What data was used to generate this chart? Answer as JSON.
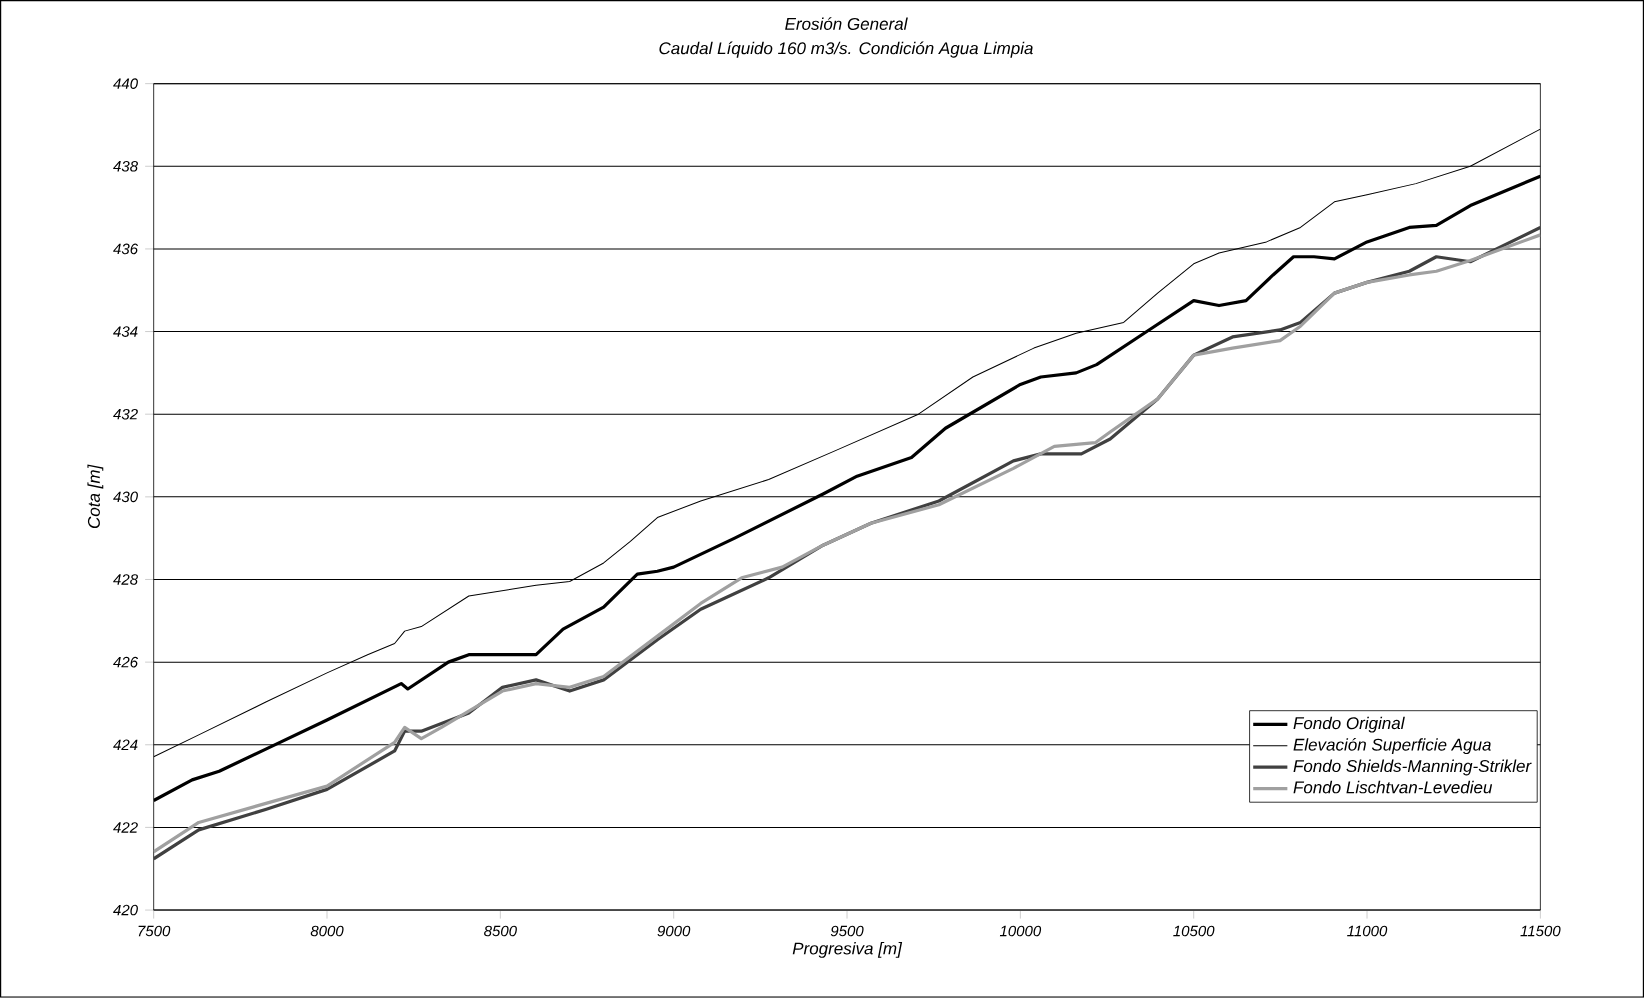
{
  "chart_data": {
    "type": "line",
    "title": "Erosión General",
    "subtitle": "Caudal Líquido 160 m3/s. Condición Agua Limpia",
    "xlabel": "Progresiva [m]",
    "ylabel": "Cota [m]",
    "xlim": [
      7500,
      11500
    ],
    "ylim": [
      420,
      440
    ],
    "xticks": [
      7500,
      8000,
      8500,
      9000,
      9500,
      10000,
      10500,
      11000,
      11500
    ],
    "yticks": [
      420,
      422,
      424,
      426,
      428,
      430,
      432,
      434,
      436,
      438,
      440
    ],
    "grid": "y",
    "legend": "bottom right",
    "marker": "none",
    "line_style": "solid",
    "series": [
      {
        "name": "Fondo Original",
        "color": "#000000",
        "x": [
          7500,
          7611,
          7689,
          7825,
          8000,
          8214,
          8233,
          8350,
          8409,
          8486,
          8603,
          8681,
          8798,
          8895,
          8953,
          9000,
          9176,
          9431,
          9529,
          9686,
          9784,
          10000,
          10059,
          10161,
          10220,
          10357,
          10500,
          10573,
          10651,
          10729,
          10788,
          10847,
          10906,
          11000,
          11122,
          11200,
          11298,
          11500
        ],
        "values": [
          422.65,
          423.15,
          423.36,
          423.9,
          424.6,
          425.48,
          425.35,
          426.0,
          426.18,
          426.18,
          426.18,
          426.8,
          427.33,
          428.13,
          428.2,
          428.3,
          429.0,
          430.07,
          430.5,
          430.95,
          431.66,
          432.72,
          432.9,
          433.0,
          433.2,
          433.96,
          434.75,
          434.63,
          434.75,
          435.37,
          435.81,
          435.81,
          435.76,
          436.17,
          436.52,
          436.57,
          437.05,
          437.76
        ]
      },
      {
        "name": "Elevación Superficie Agua",
        "color": "#000000",
        "x": [
          7500,
          7630,
          7825,
          8000,
          8117,
          8195,
          8224,
          8272,
          8409,
          8603,
          8700,
          8798,
          8875,
          8953,
          9078,
          9274,
          9470,
          9706,
          9863,
          10039,
          10161,
          10298,
          10396,
          10500,
          10573,
          10710,
          10808,
          10906,
          11000,
          11141,
          11298,
          11500
        ],
        "values": [
          423.71,
          424.24,
          425.04,
          425.74,
          426.18,
          426.45,
          426.75,
          426.86,
          427.6,
          427.86,
          427.95,
          428.4,
          428.92,
          429.5,
          429.9,
          430.42,
          431.13,
          432.0,
          432.9,
          433.6,
          433.96,
          434.22,
          434.93,
          435.64,
          435.9,
          436.17,
          436.52,
          437.14,
          437.31,
          437.58,
          438.0,
          438.9
        ]
      },
      {
        "name": "Fondo Shields-Manning-Strikler",
        "color": "#404040",
        "x": [
          7500,
          7630,
          7825,
          8000,
          8195,
          8224,
          8272,
          8409,
          8506,
          8603,
          8700,
          8798,
          8953,
          9078,
          9274,
          9431,
          9569,
          9765,
          9980,
          10059,
          10176,
          10259,
          10396,
          10500,
          10612,
          10749,
          10808,
          10906,
          11000,
          11122,
          11200,
          11298,
          11500
        ],
        "values": [
          421.24,
          421.94,
          422.44,
          422.92,
          423.85,
          424.33,
          424.33,
          424.77,
          425.39,
          425.57,
          425.3,
          425.57,
          426.54,
          427.28,
          428.04,
          428.83,
          429.36,
          429.9,
          430.87,
          431.04,
          431.04,
          431.4,
          432.37,
          433.43,
          433.87,
          434.04,
          434.22,
          434.93,
          435.19,
          435.46,
          435.81,
          435.69,
          436.52
        ]
      },
      {
        "name": "Fondo Lischtvan-Levedieu",
        "color": "#a0a0a0",
        "x": [
          7500,
          7630,
          8000,
          8195,
          8224,
          8272,
          8330,
          8506,
          8603,
          8700,
          8798,
          8953,
          9078,
          9196,
          9313,
          9431,
          9569,
          9765,
          9980,
          10098,
          10216,
          10259,
          10396,
          10500,
          10612,
          10749,
          10808,
          10906,
          11000,
          11122,
          11200,
          11298,
          11500
        ],
        "values": [
          421.41,
          422.12,
          423.0,
          424.06,
          424.42,
          424.15,
          424.42,
          425.3,
          425.48,
          425.39,
          425.65,
          426.63,
          427.42,
          428.04,
          428.3,
          428.83,
          429.36,
          429.81,
          430.69,
          431.22,
          431.31,
          431.57,
          432.37,
          433.43,
          433.6,
          433.78,
          434.13,
          434.93,
          435.19,
          435.37,
          435.46,
          435.72,
          436.34
        ]
      }
    ]
  }
}
